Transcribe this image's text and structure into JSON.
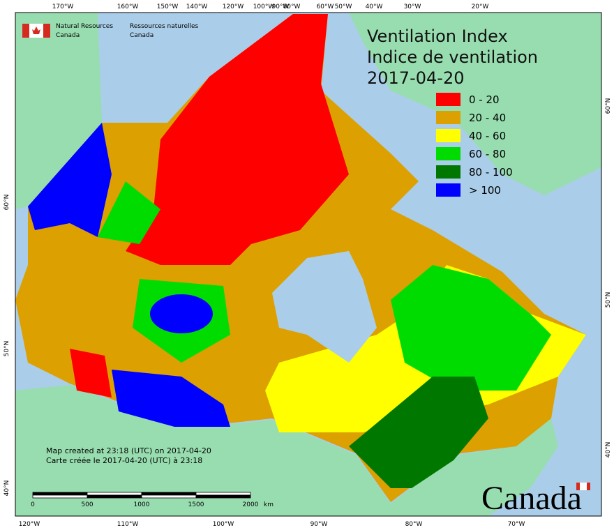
{
  "agency": {
    "en_line1": "Natural Resources",
    "en_line2": "Canada",
    "fr_line1": "Ressources naturelles",
    "fr_line2": "Canada"
  },
  "title": [
    "Ventilation Index",
    "Indice de ventilation",
    "2017-04-20"
  ],
  "legend": [
    {
      "label": "0 - 20",
      "color": "#ff0000"
    },
    {
      "label": "20 - 40",
      "color": "#dca000"
    },
    {
      "label": "40 - 60",
      "color": "#ffff00"
    },
    {
      "label": "60 - 80",
      "color": "#00dc00"
    },
    {
      "label": "80 - 100",
      "color": "#007800"
    },
    {
      "label": "> 100",
      "color": "#0000ff"
    }
  ],
  "axes": {
    "top": [
      "170°W",
      "160°W",
      "150°W",
      "140°W",
      "120°W",
      "100°W",
      "90°W",
      "80°W",
      "60°W",
      "50°W",
      "40°W",
      "30°W",
      "20°W"
    ],
    "bottom": [
      "120°W",
      "110°W",
      "100°W",
      "90°W",
      "80°W",
      "70°W"
    ],
    "left": [
      "60°N",
      "50°N",
      "40°N"
    ],
    "right": [
      "60°N",
      "50°N",
      "40°N"
    ]
  },
  "footer": [
    "Map created at 23:18 (UTC) on 2017-04-20",
    "Carte créée le 2017-04-20 (UTC) à 23:18"
  ],
  "scale_bar": {
    "labels": [
      "0",
      "500",
      "1000",
      "1500",
      "2000"
    ],
    "unit": "km"
  },
  "wordmark": "Canada"
}
